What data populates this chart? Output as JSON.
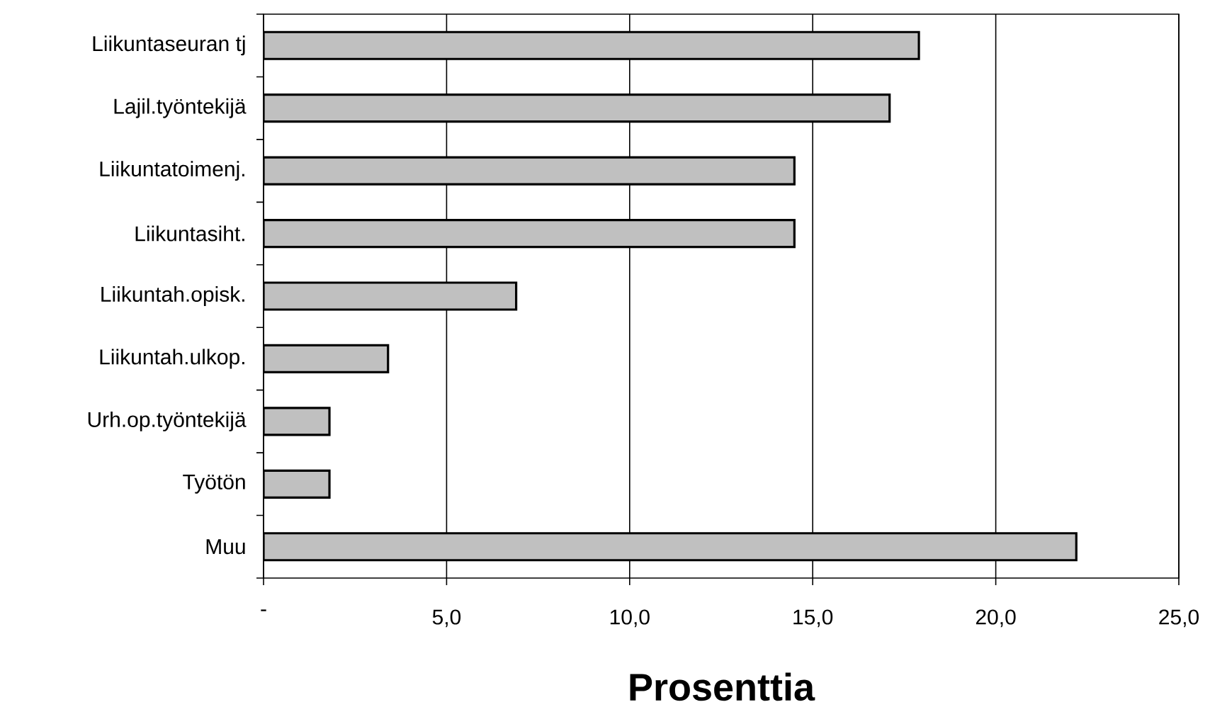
{
  "chart_data": {
    "type": "bar",
    "orientation": "horizontal",
    "xlabel": "Prosenttia",
    "categories": [
      "Liikuntaseuran tj",
      "Lajil.työntekijä",
      "Liikuntatoimenj.",
      "Liikuntasiht.",
      "Liikuntah.opisk.",
      "Liikuntah.ulkop.",
      "Urh.op.työntekijä",
      "Työtön",
      "Muu"
    ],
    "values": [
      17.9,
      17.1,
      14.5,
      14.5,
      6.9,
      3.4,
      1.8,
      1.8,
      22.2
    ],
    "color": "#c0c0c0",
    "xlim": [
      0,
      25
    ],
    "xticks": [
      {
        "value": 0,
        "label": "-"
      },
      {
        "value": 5,
        "label": "5,0"
      },
      {
        "value": 10,
        "label": "10,0"
      },
      {
        "value": 15,
        "label": "15,0"
      },
      {
        "value": 20,
        "label": "20,0"
      },
      {
        "value": 25,
        "label": "25,0"
      }
    ],
    "grid": "x"
  }
}
